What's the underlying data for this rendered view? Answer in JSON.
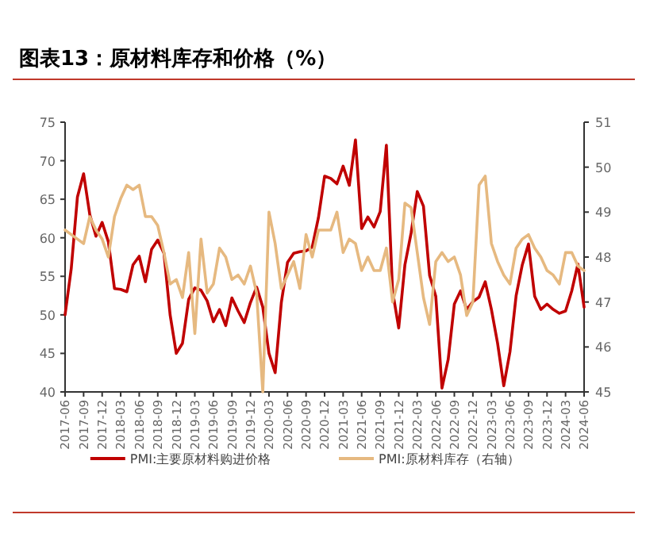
{
  "chart_data": {
    "type": "line",
    "title": "图表13：原材料库存和价格（%）",
    "x": [
      "2017-06",
      "2017-07",
      "2017-08",
      "2017-09",
      "2017-10",
      "2017-11",
      "2017-12",
      "2018-01",
      "2018-02",
      "2018-03",
      "2018-04",
      "2018-05",
      "2018-06",
      "2018-07",
      "2018-08",
      "2018-09",
      "2018-10",
      "2018-11",
      "2018-12",
      "2019-01",
      "2019-02",
      "2019-03",
      "2019-04",
      "2019-05",
      "2019-06",
      "2019-07",
      "2019-08",
      "2019-09",
      "2019-10",
      "2019-11",
      "2019-12",
      "2020-01",
      "2020-02",
      "2020-03",
      "2020-04",
      "2020-05",
      "2020-06",
      "2020-07",
      "2020-08",
      "2020-09",
      "2020-10",
      "2020-11",
      "2020-12",
      "2021-01",
      "2021-02",
      "2021-03",
      "2021-04",
      "2021-05",
      "2021-06",
      "2021-07",
      "2021-08",
      "2021-09",
      "2021-10",
      "2021-11",
      "2021-12",
      "2022-01",
      "2022-02",
      "2022-03",
      "2022-04",
      "2022-05",
      "2022-06",
      "2022-07",
      "2022-08",
      "2022-09",
      "2022-10",
      "2022-11",
      "2022-12",
      "2023-01",
      "2023-02",
      "2023-03",
      "2023-04",
      "2023-05",
      "2023-06",
      "2023-07",
      "2023-08",
      "2023-09",
      "2023-10",
      "2023-11",
      "2023-12",
      "2024-01",
      "2024-02",
      "2024-03",
      "2024-04",
      "2024-05",
      "2024-06"
    ],
    "series": [
      {
        "name": "PMI:主要原材料购进价格",
        "color": "#c00000",
        "values": [
          50,
          56,
          65.3,
          68.3,
          63,
          60.2,
          62,
          59.5,
          53.4,
          53.3,
          53,
          56.5,
          57.6,
          54.3,
          58.5,
          59.7,
          58,
          50,
          45,
          46.3,
          52,
          53.5,
          53.2,
          51.8,
          49.1,
          50.7,
          48.6,
          52.2,
          50.5,
          49,
          51.6,
          53.6,
          51,
          45,
          42.5,
          51.6,
          56.8,
          58,
          58.2,
          58.3,
          58.8,
          62.6,
          68,
          67.7,
          67,
          69.3,
          66.8,
          72.7,
          61.2,
          62.7,
          61.4,
          63.4,
          72,
          53.1,
          48.3,
          56.5,
          60.6,
          66,
          64.1,
          55.1,
          52.4,
          40.5,
          44.2,
          51.4,
          53.1,
          50.7,
          51.7,
          52.3,
          54.3,
          50.7,
          46.3,
          40.8,
          45.2,
          52.5,
          56.5,
          59.2,
          52.4,
          50.7,
          51.4,
          50.7,
          50.2,
          50.5,
          53.1,
          56.6,
          51
        ]
      },
      {
        "name": "PMI:原材料库存（右轴）",
        "color": "#e6b980",
        "axis": "y2",
        "values": [
          48.6,
          48.5,
          48.4,
          48.3,
          48.9,
          48.6,
          48.4,
          48.0,
          48.9,
          49.3,
          49.6,
          49.5,
          49.6,
          48.9,
          48.9,
          48.7,
          48.1,
          47.4,
          47.5,
          47.1,
          48.1,
          46.3,
          48.4,
          47.2,
          47.4,
          48.2,
          48.0,
          47.5,
          47.6,
          47.4,
          47.8,
          47.2,
          45,
          49.0,
          48.3,
          47.3,
          47.6,
          47.9,
          47.3,
          48.5,
          48.0,
          48.6,
          48.6,
          48.6,
          49.0,
          48.1,
          48.4,
          48.3,
          47.7,
          48.0,
          47.7,
          47.7,
          48.2,
          47.0,
          47.5,
          49.2,
          49.1,
          48.1,
          47.1,
          46.5,
          47.9,
          48.1,
          47.9,
          48.0,
          47.6,
          46.7,
          47.0,
          49.6,
          49.8,
          48.3,
          47.9,
          47.6,
          47.4,
          48.2,
          48.4,
          48.5,
          48.2,
          48.0,
          47.7,
          47.6,
          47.4,
          48.1,
          48.1,
          47.8,
          47.7
        ]
      }
    ],
    "xlim": [
      "2017-06",
      "2024-06"
    ],
    "xticks": [
      "2017-06",
      "2017-09",
      "2017-12",
      "2018-03",
      "2018-06",
      "2018-09",
      "2018-12",
      "2019-03",
      "2019-06",
      "2019-09",
      "2019-12",
      "2020-03",
      "2020-06",
      "2020-09",
      "2020-12",
      "2021-03",
      "2021-06",
      "2021-09",
      "2021-12",
      "2022-03",
      "2022-06",
      "2022-09",
      "2022-12",
      "2023-03",
      "2023-06",
      "2023-09",
      "2023-12",
      "2024-03",
      "2024-06"
    ],
    "ylim": [
      40,
      75
    ],
    "yticks": [
      40,
      45,
      50,
      55,
      60,
      65,
      70,
      75
    ],
    "y2lim": [
      45,
      51
    ],
    "y2ticks": [
      45,
      46,
      47,
      48,
      49,
      50,
      51
    ],
    "legend": "bottom",
    "grid": false,
    "marker": "none",
    "line_style": "solid"
  }
}
